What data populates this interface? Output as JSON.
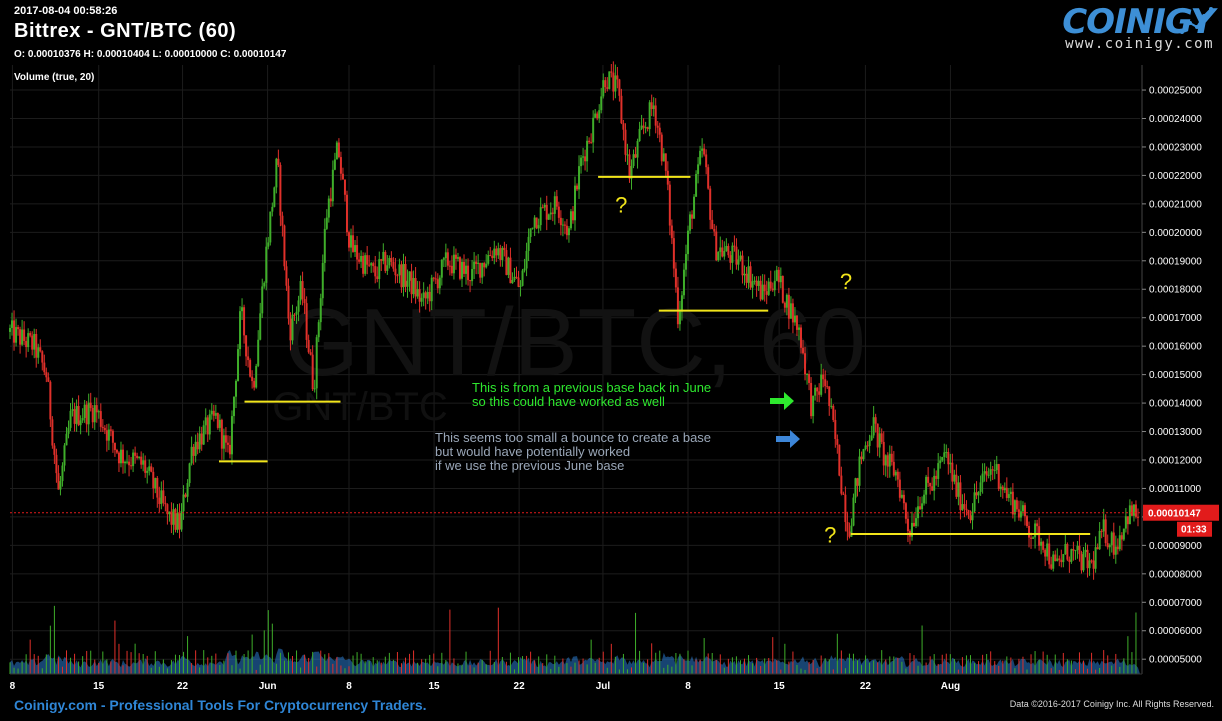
{
  "header": {
    "timestamp": "2017-08-04 00:58:26",
    "title": "Bittrex - GNT/BTC (60)",
    "ohlc": "O: 0.00010376 H: 0.00010404 L: 0.00010000 C: 0.00010147",
    "volume_label": "Volume (true, 20)"
  },
  "logo": {
    "word": "COINIGY",
    "url": "www.coinigy.com"
  },
  "footer": {
    "left": "Coinigy.com - Professional Tools For Cryptocurrency Traders.",
    "right": "Data ©2016-2017 Coinigy Inc. All Rights Reserved."
  },
  "colors": {
    "up": "#3fae2a",
    "down": "#e0302a",
    "grid": "#1c1c1c",
    "annot_yellow": "#f2e51a",
    "annot_green": "#2ee82e",
    "annot_blue": "#3d86d8",
    "price_tag": "#e21b1b",
    "volume_area": "#2a7bd0"
  },
  "chart_data": {
    "type": "candlestick",
    "pair": "GNT/BTC",
    "interval": "60",
    "watermark": "GNT/BTC, 60",
    "watermark_sub": "GNT/BTC",
    "x_ticks": [
      "8",
      "15",
      "22",
      "Jun",
      "8",
      "15",
      "22",
      "Jul",
      "8",
      "15",
      "22",
      "Aug"
    ],
    "y_ticks": [
      "0.00025000",
      "0.00024000",
      "0.00023000",
      "0.00022000",
      "0.00021000",
      "0.00020000",
      "0.00019000",
      "0.00018000",
      "0.00017000",
      "0.00016000",
      "0.00015000",
      "0.00014000",
      "0.00013000",
      "0.00012000",
      "0.00011000",
      "0.00010000",
      "0.00009000",
      "0.00008000",
      "0.00007000",
      "0.00006000",
      "0.00005000"
    ],
    "ylim": [
      4.48e-05,
      0.0002588
    ],
    "last_price": "0.00010147",
    "last_price_value": 0.00010147,
    "countdown": "01:33",
    "price_path_days": [
      [
        0,
        0.000165
      ],
      [
        2,
        0.00016
      ],
      [
        3,
        0.00015
      ],
      [
        4,
        0.000108
      ],
      [
        5,
        0.000135
      ],
      [
        7,
        0.000138
      ],
      [
        9,
        0.000122
      ],
      [
        11,
        0.000118
      ],
      [
        13,
        0.0001
      ],
      [
        14,
        9.7e-05
      ],
      [
        15,
        0.000125
      ],
      [
        17,
        0.000135
      ],
      [
        18,
        0.00012
      ],
      [
        19,
        0.000172
      ],
      [
        20,
        0.000145
      ],
      [
        21,
        0.00019
      ],
      [
        22,
        0.000225
      ],
      [
        23,
        0.000165
      ],
      [
        24,
        0.00018
      ],
      [
        25,
        0.000145
      ],
      [
        26,
        0.000205
      ],
      [
        27,
        0.00023
      ],
      [
        28,
        0.000195
      ],
      [
        30,
        0.000185
      ],
      [
        31,
        0.00019
      ],
      [
        33,
        0.000182
      ],
      [
        34,
        0.000175
      ],
      [
        36,
        0.00019
      ],
      [
        38,
        0.000185
      ],
      [
        40,
        0.000195
      ],
      [
        42,
        0.00018
      ],
      [
        43,
        0.000205
      ],
      [
        45,
        0.00021
      ],
      [
        46,
        0.0002
      ],
      [
        47,
        0.000225
      ],
      [
        48,
        0.000238
      ],
      [
        49,
        0.000255
      ],
      [
        50,
        0.00025
      ],
      [
        51,
        0.00022
      ],
      [
        52,
        0.000235
      ],
      [
        53,
        0.000245
      ],
      [
        54,
        0.00022
      ],
      [
        55,
        0.00017
      ],
      [
        56,
        0.000205
      ],
      [
        57,
        0.00023
      ],
      [
        58,
        0.000195
      ],
      [
        60,
        0.00019
      ],
      [
        62,
        0.000178
      ],
      [
        63,
        0.000185
      ],
      [
        64,
        0.000175
      ],
      [
        65,
        0.000165
      ],
      [
        66,
        0.000138
      ],
      [
        67,
        0.00015
      ],
      [
        68,
        0.000125
      ],
      [
        69,
        9.5e-05
      ],
      [
        70,
        0.00012
      ],
      [
        71,
        0.000133
      ],
      [
        72,
        0.00012
      ],
      [
        73,
        0.000115
      ],
      [
        74,
        9.5e-05
      ],
      [
        75,
        0.000108
      ],
      [
        76,
        0.000112
      ],
      [
        77,
        0.000122
      ],
      [
        78,
        0.000108
      ],
      [
        79,
        0.000102
      ],
      [
        80,
        0.000112
      ],
      [
        81,
        0.000118
      ],
      [
        82,
        0.000108
      ],
      [
        83,
        0.000103
      ],
      [
        84,
        9.5e-05
      ],
      [
        85,
        9.2e-05
      ],
      [
        86,
        8.2e-05
      ],
      [
        87,
        8.8e-05
      ],
      [
        88,
        8.5e-05
      ],
      [
        89,
        8.3e-05
      ],
      [
        90,
        9.5e-05
      ],
      [
        91,
        9e-05
      ],
      [
        92,
        0.000101
      ]
    ],
    "support_lines": [
      {
        "from_day": 17.2,
        "to_day": 21.2,
        "price": 0.0001195
      },
      {
        "from_day": 19.3,
        "to_day": 27.2,
        "price": 0.0001405
      },
      {
        "from_day": 48.4,
        "to_day": 56.0,
        "price": 0.0002195
      },
      {
        "from_day": 53.4,
        "to_day": 62.4,
        "price": 0.0001725
      },
      {
        "from_day": 69.2,
        "to_day": 88.9,
        "price": 9.4e-05
      }
    ],
    "question_marks": [
      {
        "day": 49.8,
        "price": 0.000207
      },
      {
        "day": 68.3,
        "price": 0.00018
      },
      {
        "day": 67.0,
        "price": 9.1e-05
      }
    ],
    "annotations": [
      {
        "lines": [
          "This is from a previous base back in June",
          "so this could have worked as well"
        ],
        "color": "green"
      },
      {
        "lines": [
          "This seems too small a bounce to create a base",
          "but would have potentially worked",
          "if we use the previous June base"
        ],
        "color": "blue"
      }
    ]
  }
}
